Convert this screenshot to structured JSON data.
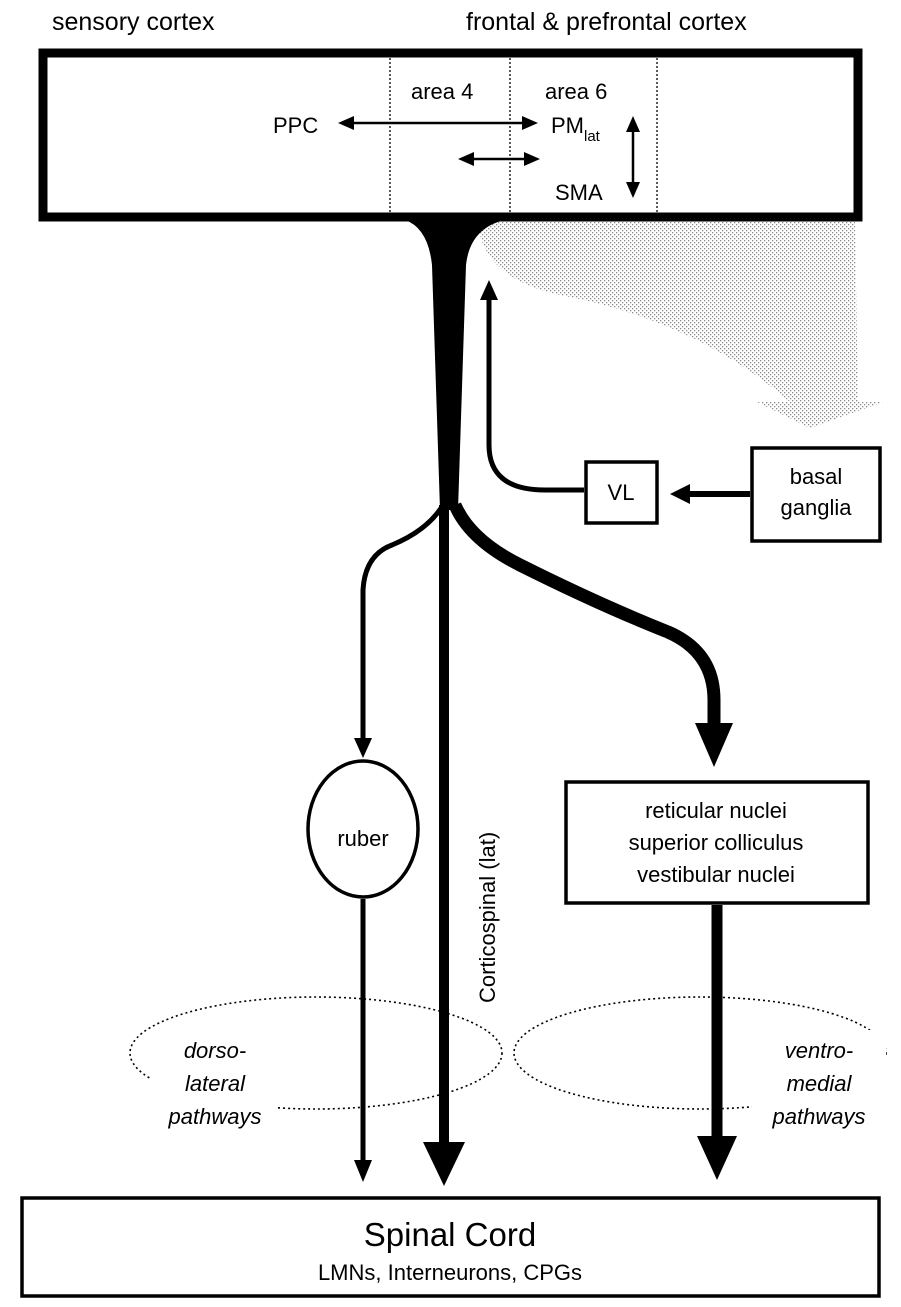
{
  "header": {
    "left_label": "sensory cortex",
    "right_label": "frontal & prefrontal cortex"
  },
  "cortex": {
    "area4_label": "area 4",
    "area6_label": "area 6",
    "ppc_label": "PPC",
    "pm_label": "PM",
    "pm_subscript": "lat",
    "sma_label": "SMA"
  },
  "nodes": {
    "vl_label": "VL",
    "basal_ganglia_lines": [
      "basal",
      "ganglia"
    ],
    "ruber_label": "ruber",
    "brainstem_lines": [
      "reticular nuclei",
      "superior colliculus",
      "vestibular nuclei"
    ]
  },
  "tracts": {
    "corticospinal_label": "Corticospinal (lat)"
  },
  "pathways": {
    "dorsolateral_lines": [
      "dorso-",
      "lateral",
      "pathways"
    ],
    "ventromedial_lines": [
      "ventro-",
      "medial",
      "pathways"
    ]
  },
  "spinal_cord": {
    "title": "Spinal Cord",
    "subtitle": "LMNs, Interneurons, CPGs"
  }
}
